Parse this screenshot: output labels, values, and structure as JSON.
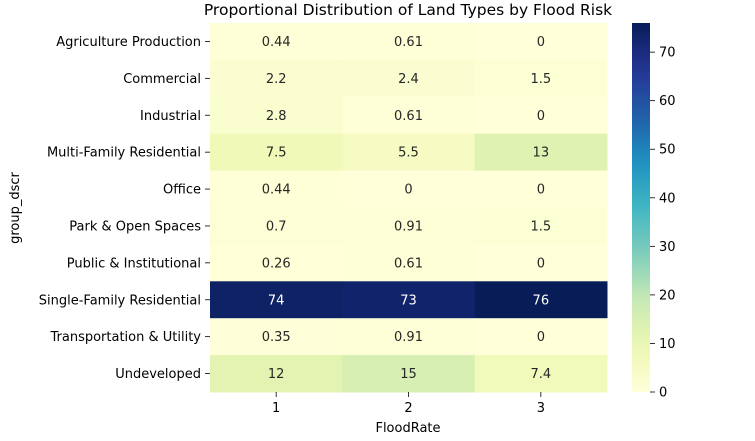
{
  "chart_data": {
    "type": "heatmap",
    "title": "Proportional Distribution of Land Types by Flood Risk",
    "xlabel": "FloodRate",
    "ylabel": "group_dscr",
    "columns": [
      "1",
      "2",
      "3"
    ],
    "rows": [
      "Agriculture Production",
      "Commercial",
      "Industrial",
      "Multi-Family Residential",
      "Office",
      "Park & Open Spaces",
      "Public & Institutional",
      "Single-Family Residential",
      "Transportation & Utility",
      "Undeveloped"
    ],
    "values": [
      [
        0.44,
        0.61,
        0
      ],
      [
        2.2,
        2.4,
        1.5
      ],
      [
        2.8,
        0.61,
        0
      ],
      [
        7.5,
        5.5,
        13
      ],
      [
        0.44,
        0,
        0
      ],
      [
        0.7,
        0.91,
        1.5
      ],
      [
        0.26,
        0.61,
        0
      ],
      [
        74,
        73,
        76
      ],
      [
        0.35,
        0.91,
        0
      ],
      [
        12,
        15,
        7.4
      ]
    ],
    "colormap": "YlGnBu",
    "colorbar": {
      "min": 0,
      "max": 76,
      "ticks": [
        0,
        10,
        20,
        30,
        40,
        50,
        60,
        70
      ]
    },
    "grid": false,
    "legend": "colorbar-right"
  }
}
